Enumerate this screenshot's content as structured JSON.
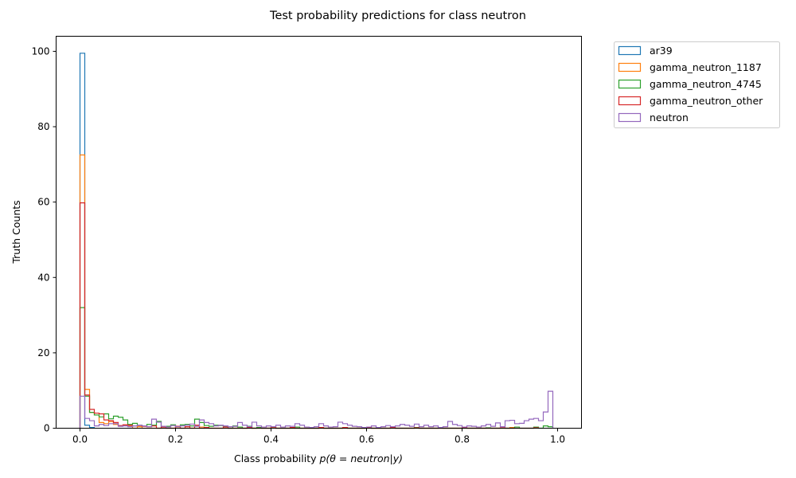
{
  "chart_data": {
    "type": "histogram",
    "title": "Test probability predictions for class neutron",
    "xlabel_prefix": "Class probability ",
    "xlabel_math": "p(θ = neutron|y)",
    "ylabel": "Truth Counts",
    "xlim": [
      -0.05,
      1.05
    ],
    "ylim": [
      0,
      104
    ],
    "xticks": [
      0.0,
      0.2,
      0.4,
      0.6,
      0.8,
      1.0
    ],
    "xtick_labels": [
      "0.0",
      "0.2",
      "0.4",
      "0.6",
      "0.8",
      "1.0"
    ],
    "yticks": [
      0,
      20,
      40,
      60,
      80,
      100
    ],
    "ytick_labels": [
      "0",
      "20",
      "40",
      "60",
      "80",
      "100"
    ],
    "grid": false,
    "legend_position": "outside-top-right",
    "bin_width": 0.01,
    "series": [
      {
        "name": "ar39",
        "color": "#1f77b4",
        "bins": [
          [
            0.0,
            99.5
          ],
          [
            0.01,
            0.8
          ],
          [
            0.02,
            0.2
          ]
        ]
      },
      {
        "name": "gamma_neutron_1187",
        "color": "#ff7f0e",
        "bins": [
          [
            0.0,
            72.5
          ],
          [
            0.01,
            10.3
          ],
          [
            0.02,
            4.2
          ],
          [
            0.03,
            3.5
          ],
          [
            0.04,
            1.5
          ],
          [
            0.05,
            1.2
          ],
          [
            0.06,
            1.8
          ],
          [
            0.07,
            1.0
          ],
          [
            0.08,
            0.6
          ],
          [
            0.09,
            0.8
          ],
          [
            0.1,
            0.5
          ],
          [
            0.12,
            0.4
          ],
          [
            0.2,
            0.3
          ],
          [
            0.25,
            0.3
          ],
          [
            0.4,
            0.2
          ],
          [
            0.9,
            0.2
          ]
        ]
      },
      {
        "name": "gamma_neutron_4745",
        "color": "#2ca02c",
        "bins": [
          [
            0.0,
            32.0
          ],
          [
            0.01,
            8.5
          ],
          [
            0.02,
            4.2
          ],
          [
            0.03,
            3.5
          ],
          [
            0.04,
            3.0
          ],
          [
            0.05,
            3.8
          ],
          [
            0.06,
            2.5
          ],
          [
            0.07,
            3.2
          ],
          [
            0.08,
            2.9
          ],
          [
            0.09,
            2.2
          ],
          [
            0.1,
            1.0
          ],
          [
            0.11,
            1.3
          ],
          [
            0.12,
            0.8
          ],
          [
            0.13,
            0.6
          ],
          [
            0.14,
            1.0
          ],
          [
            0.15,
            0.8
          ],
          [
            0.16,
            1.8
          ],
          [
            0.17,
            0.4
          ],
          [
            0.18,
            0.5
          ],
          [
            0.19,
            0.9
          ],
          [
            0.2,
            0.5
          ],
          [
            0.21,
            0.9
          ],
          [
            0.22,
            1.0
          ],
          [
            0.23,
            0.6
          ],
          [
            0.24,
            2.4
          ],
          [
            0.25,
            1.5
          ],
          [
            0.26,
            0.7
          ],
          [
            0.27,
            0.5
          ],
          [
            0.28,
            0.8
          ],
          [
            0.29,
            0.7
          ],
          [
            0.3,
            0.5
          ],
          [
            0.32,
            0.6
          ],
          [
            0.33,
            0.3
          ],
          [
            0.35,
            0.5
          ],
          [
            0.37,
            0.2
          ],
          [
            0.4,
            0.3
          ],
          [
            0.45,
            0.3
          ],
          [
            0.5,
            0.2
          ],
          [
            0.55,
            0.2
          ],
          [
            0.6,
            0.2
          ],
          [
            0.65,
            0.2
          ],
          [
            0.7,
            0.2
          ],
          [
            0.75,
            0.1
          ],
          [
            0.85,
            0.1
          ],
          [
            0.91,
            0.3
          ],
          [
            0.95,
            0.3
          ],
          [
            0.97,
            0.6
          ],
          [
            0.98,
            0.4
          ]
        ]
      },
      {
        "name": "gamma_neutron_other",
        "color": "#d62728",
        "bins": [
          [
            0.0,
            59.8
          ],
          [
            0.01,
            8.8
          ],
          [
            0.02,
            5.0
          ],
          [
            0.03,
            4.0
          ],
          [
            0.04,
            3.8
          ],
          [
            0.05,
            2.2
          ],
          [
            0.06,
            2.0
          ],
          [
            0.07,
            1.5
          ],
          [
            0.08,
            0.7
          ],
          [
            0.09,
            0.9
          ],
          [
            0.1,
            0.8
          ],
          [
            0.11,
            0.6
          ],
          [
            0.12,
            0.7
          ],
          [
            0.13,
            0.5
          ],
          [
            0.14,
            0.4
          ],
          [
            0.15,
            0.6
          ],
          [
            0.17,
            0.3
          ],
          [
            0.2,
            0.5
          ],
          [
            0.22,
            0.4
          ],
          [
            0.24,
            0.8
          ],
          [
            0.26,
            0.2
          ],
          [
            0.3,
            0.3
          ],
          [
            0.35,
            0.2
          ],
          [
            0.4,
            0.3
          ],
          [
            0.44,
            0.2
          ],
          [
            0.5,
            0.2
          ],
          [
            0.55,
            0.2
          ],
          [
            0.6,
            0.1
          ],
          [
            0.65,
            0.2
          ],
          [
            0.7,
            0.1
          ],
          [
            0.8,
            0.1
          ],
          [
            0.88,
            0.1
          ],
          [
            0.95,
            0.1
          ]
        ]
      },
      {
        "name": "neutron",
        "color": "#9467bd",
        "bins": [
          [
            0.0,
            8.5
          ],
          [
            0.01,
            2.6
          ],
          [
            0.02,
            2.0
          ],
          [
            0.03,
            0.6
          ],
          [
            0.04,
            1.0
          ],
          [
            0.05,
            0.7
          ],
          [
            0.06,
            1.2
          ],
          [
            0.07,
            1.2
          ],
          [
            0.08,
            0.5
          ],
          [
            0.09,
            0.6
          ],
          [
            0.1,
            0.4
          ],
          [
            0.11,
            0.6
          ],
          [
            0.12,
            0.8
          ],
          [
            0.13,
            0.6
          ],
          [
            0.14,
            0.4
          ],
          [
            0.15,
            2.4
          ],
          [
            0.16,
            1.6
          ],
          [
            0.17,
            0.5
          ],
          [
            0.18,
            0.3
          ],
          [
            0.19,
            0.7
          ],
          [
            0.2,
            0.4
          ],
          [
            0.21,
            0.6
          ],
          [
            0.22,
            0.8
          ],
          [
            0.23,
            1.1
          ],
          [
            0.24,
            0.5
          ],
          [
            0.25,
            2.2
          ],
          [
            0.26,
            1.5
          ],
          [
            0.27,
            1.2
          ],
          [
            0.28,
            0.6
          ],
          [
            0.29,
            0.8
          ],
          [
            0.3,
            0.6
          ],
          [
            0.31,
            0.4
          ],
          [
            0.32,
            0.5
          ],
          [
            0.33,
            1.5
          ],
          [
            0.34,
            0.8
          ],
          [
            0.35,
            0.4
          ],
          [
            0.36,
            1.6
          ],
          [
            0.37,
            0.6
          ],
          [
            0.38,
            0.3
          ],
          [
            0.39,
            0.6
          ],
          [
            0.4,
            0.4
          ],
          [
            0.41,
            0.8
          ],
          [
            0.42,
            0.3
          ],
          [
            0.43,
            0.6
          ],
          [
            0.44,
            0.5
          ],
          [
            0.45,
            1.2
          ],
          [
            0.46,
            0.8
          ],
          [
            0.47,
            0.3
          ],
          [
            0.48,
            0.2
          ],
          [
            0.49,
            0.4
          ],
          [
            0.5,
            1.2
          ],
          [
            0.51,
            0.6
          ],
          [
            0.52,
            0.3
          ],
          [
            0.53,
            0.4
          ],
          [
            0.54,
            1.6
          ],
          [
            0.55,
            1.2
          ],
          [
            0.56,
            0.8
          ],
          [
            0.57,
            0.5
          ],
          [
            0.58,
            0.4
          ],
          [
            0.59,
            0.2
          ],
          [
            0.6,
            0.3
          ],
          [
            0.61,
            0.6
          ],
          [
            0.62,
            0.2
          ],
          [
            0.63,
            0.4
          ],
          [
            0.64,
            0.7
          ],
          [
            0.65,
            0.4
          ],
          [
            0.66,
            0.6
          ],
          [
            0.67,
            1.0
          ],
          [
            0.68,
            0.8
          ],
          [
            0.69,
            0.5
          ],
          [
            0.7,
            1.1
          ],
          [
            0.71,
            0.4
          ],
          [
            0.72,
            0.8
          ],
          [
            0.73,
            0.4
          ],
          [
            0.74,
            0.6
          ],
          [
            0.75,
            0.2
          ],
          [
            0.76,
            0.4
          ],
          [
            0.77,
            1.8
          ],
          [
            0.78,
            1.0
          ],
          [
            0.79,
            0.7
          ],
          [
            0.8,
            0.3
          ],
          [
            0.81,
            0.6
          ],
          [
            0.82,
            0.5
          ],
          [
            0.83,
            0.3
          ],
          [
            0.84,
            0.6
          ],
          [
            0.85,
            1.0
          ],
          [
            0.86,
            0.5
          ],
          [
            0.87,
            1.4
          ],
          [
            0.88,
            0.4
          ],
          [
            0.89,
            2.0
          ],
          [
            0.9,
            2.1
          ],
          [
            0.91,
            1.2
          ],
          [
            0.92,
            1.3
          ],
          [
            0.93,
            2.0
          ],
          [
            0.94,
            2.4
          ],
          [
            0.95,
            2.6
          ],
          [
            0.96,
            2.0
          ],
          [
            0.97,
            4.3
          ],
          [
            0.98,
            9.8
          ]
        ]
      }
    ]
  }
}
